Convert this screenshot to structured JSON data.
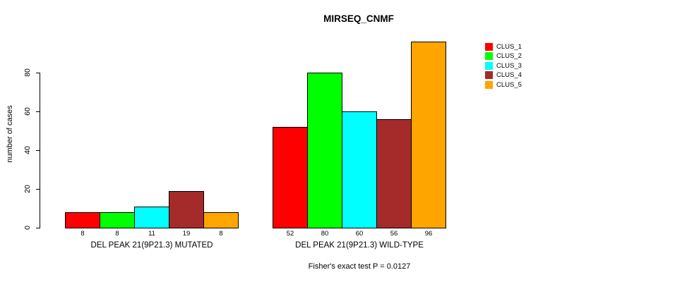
{
  "chart_data": {
    "type": "bar",
    "title": "MIRSEQ_CNMF",
    "ylabel": "number of cases",
    "xlabel": "",
    "ylim": [
      0,
      80
    ],
    "yticks": [
      0,
      20,
      40,
      60,
      80
    ],
    "grid": false,
    "legend_position": "right",
    "categories": [
      "DEL PEAK 21(9P21.3) MUTATED",
      "DEL PEAK 21(9P21.3) WILD-TYPE"
    ],
    "series": [
      {
        "name": "CLUS_1",
        "color": "#FF0000",
        "values": [
          8,
          52
        ]
      },
      {
        "name": "CLUS_2",
        "color": "#00FF00",
        "values": [
          8,
          80
        ]
      },
      {
        "name": "CLUS_3",
        "color": "#00FFFF",
        "values": [
          11,
          60
        ]
      },
      {
        "name": "CLUS_4",
        "color": "#A52A2A",
        "values": [
          19,
          56
        ]
      },
      {
        "name": "CLUS_5",
        "color": "#FFA500",
        "values": [
          8,
          96
        ]
      }
    ],
    "bar_value_labels": [
      [
        "8",
        "8",
        "11",
        "19",
        "8"
      ],
      [
        "52",
        "80",
        "60",
        "56",
        "96"
      ]
    ],
    "footnote": "Fisher's exact test P = 0.0127",
    "text_color": "#000000",
    "background_color": "#FFFFFF"
  }
}
